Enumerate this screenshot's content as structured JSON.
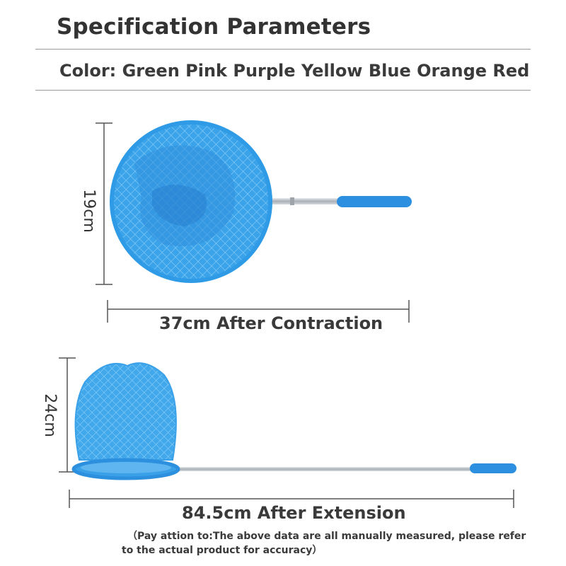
{
  "header": {
    "title": "Specification Parameters"
  },
  "colors": {
    "label": "Color:",
    "options": "Green Pink Purple Yellow Blue Orange Red"
  },
  "contracted": {
    "height_label": "19cm",
    "length_label": "37cm After Contraction"
  },
  "extended": {
    "height_label": "24cm",
    "length_label": "84.5cm After Extension"
  },
  "note": {
    "line1": "（Pay attion to:The above data are all manually measured, please refer",
    "line2": "to the actual product for accuracy）"
  },
  "palette": {
    "net_blue": "#2f9be6",
    "handle_blue": "#2d8fe0",
    "pole_silver": "#b9bec4"
  }
}
